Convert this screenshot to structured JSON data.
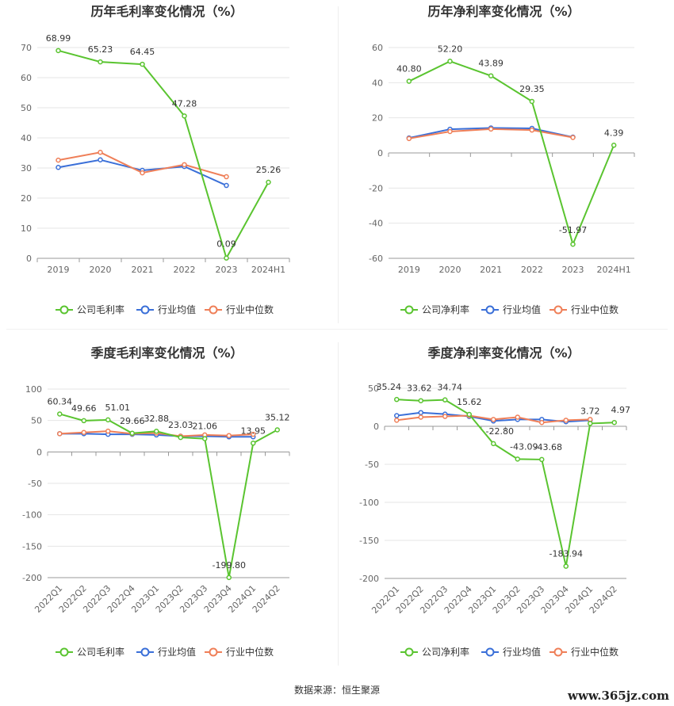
{
  "legend_colors": {
    "company": "#5ac430",
    "avg": "#3a6fd8",
    "median": "#ef7f58"
  },
  "source_text": "数据来源：恒生聚源",
  "watermark": "www.365jz.com",
  "chart_data": [
    {
      "type": "line",
      "title": "历年毛利率变化情况（%）",
      "categories": [
        "2019",
        "2020",
        "2021",
        "2022",
        "2023",
        "2024H1"
      ],
      "ylim": [
        0,
        70
      ],
      "yticks": [
        0,
        10,
        20,
        30,
        40,
        50,
        60,
        70
      ],
      "grid": true,
      "legend_position": "bottom",
      "series": [
        {
          "name": "公司毛利率",
          "values": [
            68.99,
            65.23,
            64.45,
            47.28,
            0.09,
            25.26
          ],
          "labels": [
            "68.99",
            "65.23",
            "64.45",
            "47.28",
            "0.09",
            "25.26"
          ]
        },
        {
          "name": "行业均值",
          "values": [
            30.2,
            32.7,
            29.2,
            30.5,
            24.2,
            null
          ]
        },
        {
          "name": "行业中位数",
          "values": [
            32.6,
            35.2,
            28.4,
            31.1,
            27.1,
            null
          ]
        }
      ]
    },
    {
      "type": "line",
      "title": "历年净利率变化情况（%）",
      "categories": [
        "2019",
        "2020",
        "2021",
        "2022",
        "2023",
        "2024H1"
      ],
      "ylim": [
        -60,
        60
      ],
      "yticks": [
        -60,
        -40,
        -20,
        0,
        20,
        40,
        60
      ],
      "grid": true,
      "legend_position": "bottom",
      "series": [
        {
          "name": "公司净利率",
          "values": [
            40.8,
            52.2,
            43.89,
            29.35,
            -51.97,
            4.39
          ],
          "labels": [
            "40.80",
            "52.20",
            "43.89",
            "29.35",
            "-51.97",
            "4.39"
          ]
        },
        {
          "name": "行业均值",
          "values": [
            8.5,
            13.5,
            14.2,
            14.0,
            9.0,
            null
          ]
        },
        {
          "name": "行业中位数",
          "values": [
            8.2,
            12.2,
            13.6,
            13.0,
            8.8,
            null
          ]
        }
      ]
    },
    {
      "type": "line",
      "title": "季度毛利率变化情况（%）",
      "categories": [
        "2022Q1",
        "2022Q2",
        "2022Q3",
        "2022Q4",
        "2023Q1",
        "2023Q2",
        "2023Q3",
        "2023Q4",
        "2024Q1",
        "2024Q2"
      ],
      "ylim": [
        -200,
        100
      ],
      "yticks": [
        -200,
        -150,
        -100,
        -50,
        0,
        50,
        100
      ],
      "grid": true,
      "legend_position": "bottom",
      "series": [
        {
          "name": "公司毛利率",
          "values": [
            60.34,
            49.66,
            51.01,
            29.66,
            32.88,
            23.03,
            21.06,
            -199.8,
            13.95,
            35.12
          ],
          "labels": [
            "60.34",
            "49.66",
            "51.01",
            "29.66",
            "32.88",
            "23.03",
            "21.06",
            "-199.80",
            "13.95",
            "35.12"
          ]
        },
        {
          "name": "行业均值",
          "values": [
            29,
            29,
            28,
            28,
            27,
            25,
            25,
            24,
            24,
            null
          ]
        },
        {
          "name": "行业中位数",
          "values": [
            29,
            31,
            33,
            29,
            30,
            25,
            27,
            26,
            28,
            null
          ]
        }
      ]
    },
    {
      "type": "line",
      "title": "季度净利率变化情况（%）",
      "categories": [
        "2022Q1",
        "2022Q2",
        "2022Q3",
        "2022Q4",
        "2023Q1",
        "2023Q2",
        "2023Q3",
        "2023Q4",
        "2024Q1",
        "2024Q2"
      ],
      "ylim": [
        -200,
        50
      ],
      "yticks": [
        -200,
        -150,
        -100,
        -50,
        0,
        50
      ],
      "grid": true,
      "legend_position": "bottom",
      "series": [
        {
          "name": "公司净利率",
          "values": [
            35.24,
            33.62,
            34.74,
            15.62,
            -22.8,
            -43.09,
            -43.68,
            -183.94,
            3.72,
            4.97
          ],
          "labels": [
            "35.24",
            "33.62",
            "34.74",
            "15.62",
            "-22.80",
            "-43.09",
            "-43.68",
            "-183.94",
            "3.72",
            "4.97"
          ]
        },
        {
          "name": "行业均值",
          "values": [
            14,
            18,
            16,
            13,
            7,
            9,
            9,
            6,
            8,
            null
          ]
        },
        {
          "name": "行业中位数",
          "values": [
            8,
            12,
            13,
            14,
            9,
            12,
            5,
            8,
            9,
            null
          ]
        }
      ]
    }
  ]
}
